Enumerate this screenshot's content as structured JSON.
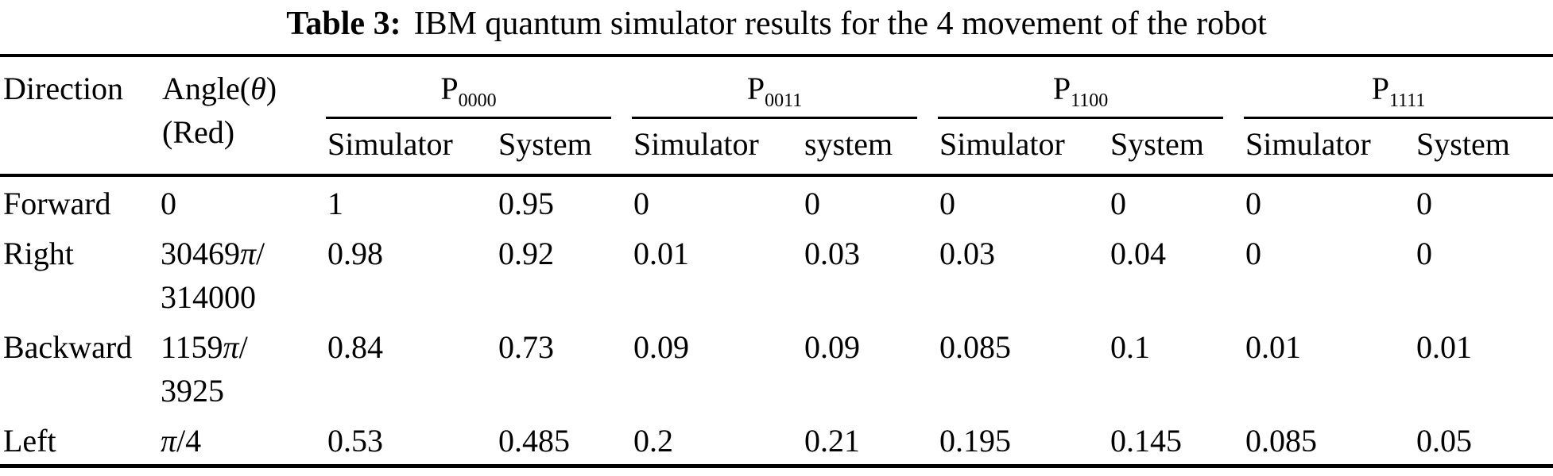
{
  "title": {
    "label": "Table 3:",
    "text": "IBM quantum simulator results for the 4 movement of the robot"
  },
  "table": {
    "col_direction": "Direction",
    "col_angle_line1": "Angle(θ)",
    "col_angle_line2": "(Red)",
    "groups": [
      {
        "label": "P",
        "sub": "0000",
        "cols": [
          "Simulator",
          "System"
        ]
      },
      {
        "label": "P",
        "sub": "0011",
        "cols": [
          "Simulator",
          "system"
        ]
      },
      {
        "label": "P",
        "sub": "1100",
        "cols": [
          "Simulator",
          "System"
        ]
      },
      {
        "label": "P",
        "sub": "1111",
        "cols": [
          "Simulator",
          "System"
        ]
      }
    ],
    "rows": [
      {
        "direction": "Forward",
        "angle_line1": "0",
        "angle_line2": "",
        "values": [
          "1",
          "0.95",
          "0",
          "0",
          "0",
          "0",
          "0",
          "0"
        ]
      },
      {
        "direction": "Right",
        "angle_line1": "30469π/",
        "angle_line2": "314000",
        "values": [
          "0.98",
          "0.92",
          "0.01",
          "0.03",
          "0.03",
          "0.04",
          "0",
          "0"
        ]
      },
      {
        "direction": "Backward",
        "angle_line1": "1159π/",
        "angle_line2": "3925",
        "values": [
          "0.84",
          "0.73",
          "0.09",
          "0.09",
          "0.085",
          "0.1",
          "0.01",
          "0.01"
        ]
      },
      {
        "direction": "Left",
        "angle_line1": "π/4",
        "angle_line2": "",
        "values": [
          "0.53",
          "0.485",
          "0.2",
          "0.21",
          "0.195",
          "0.145",
          "0.085",
          "0.05"
        ]
      }
    ]
  }
}
